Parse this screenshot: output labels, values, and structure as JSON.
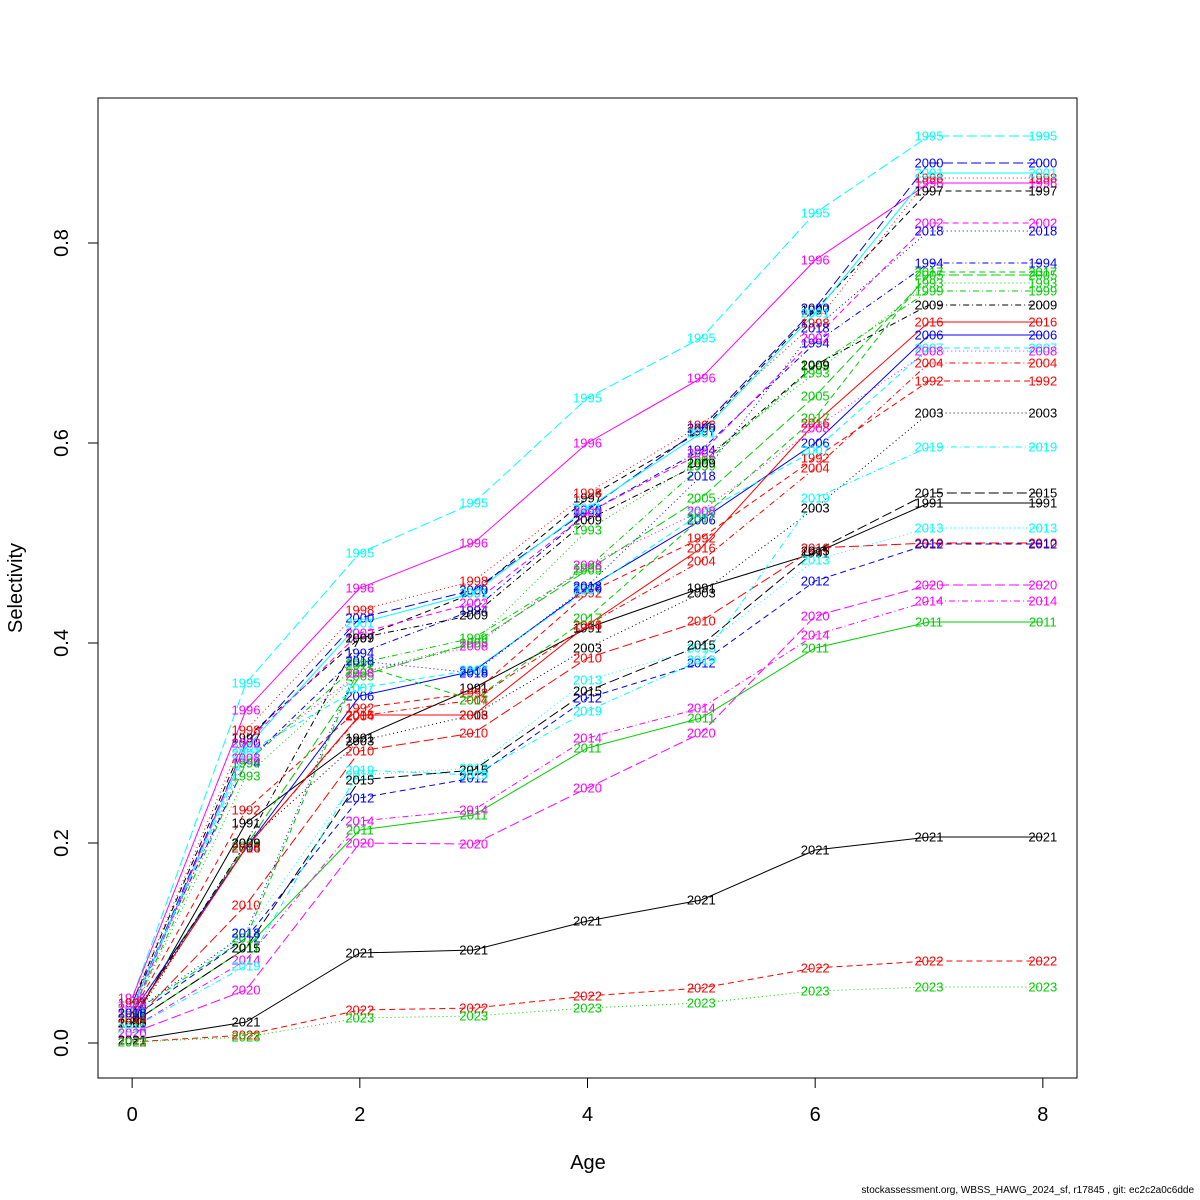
{
  "footer_text": "stockassessment.org, WBSS_HAWG_2024_sf, r17845 , git: ec2c2a0c6dde",
  "chart_data": {
    "type": "line",
    "xlabel": "Age",
    "ylabel": "Selectivity",
    "xlim": [
      -0.3,
      8.3
    ],
    "ylim": [
      -0.035,
      0.945
    ],
    "xticks": [
      "0",
      "2",
      "4",
      "6",
      "8"
    ],
    "yticks": [
      "0.0",
      "0.2",
      "0.4",
      "0.6",
      "0.8"
    ],
    "grid": false,
    "x": [
      0,
      1,
      2,
      3,
      4,
      5,
      6,
      7,
      8
    ],
    "series": [
      {
        "name": "1991",
        "color": "#000000",
        "dash": "solid",
        "values": [
          0.02,
          0.22,
          0.305,
          0.355,
          0.415,
          0.455,
          0.49,
          0.54,
          0.54
        ]
      },
      {
        "name": "1992",
        "color": "#FF0000",
        "dash": "6,4",
        "values": [
          0.03,
          0.233,
          0.335,
          0.35,
          0.45,
          0.505,
          0.585,
          0.662,
          0.662
        ]
      },
      {
        "name": "1993",
        "color": "#00CD00",
        "dash": "1,3",
        "values": [
          0.03,
          0.267,
          0.37,
          0.4,
          0.513,
          0.583,
          0.67,
          0.76,
          0.76
        ]
      },
      {
        "name": "1994",
        "color": "#0000FF",
        "dash": "1,3,6,3",
        "values": [
          0.04,
          0.28,
          0.39,
          0.433,
          0.53,
          0.593,
          0.7,
          0.78,
          0.78
        ]
      },
      {
        "name": "1995",
        "color": "#00FFFF",
        "dash": "10,4",
        "values": [
          0.045,
          0.36,
          0.49,
          0.54,
          0.645,
          0.705,
          0.83,
          0.907,
          0.907
        ]
      },
      {
        "name": "1996",
        "color": "#FF00FF",
        "dash": "solid",
        "values": [
          0.045,
          0.333,
          0.455,
          0.5,
          0.6,
          0.665,
          0.783,
          0.86,
          0.86
        ]
      },
      {
        "name": "1997",
        "color": "#000000",
        "dash": "6,4",
        "values": [
          0.04,
          0.305,
          0.405,
          0.45,
          0.545,
          0.612,
          0.733,
          0.852,
          0.852
        ]
      },
      {
        "name": "1998",
        "color": "#FF0000",
        "dash": "1,3",
        "values": [
          0.04,
          0.313,
          0.433,
          0.462,
          0.55,
          0.618,
          0.72,
          0.865,
          0.865
        ]
      },
      {
        "name": "1999",
        "color": "#00CD00",
        "dash": "1,3,6,3",
        "values": [
          0.03,
          0.28,
          0.38,
          0.405,
          0.475,
          0.577,
          0.677,
          0.752,
          0.752
        ]
      },
      {
        "name": "2000",
        "color": "#0000FF",
        "dash": "10,4",
        "values": [
          0.035,
          0.3,
          0.425,
          0.453,
          0.533,
          0.615,
          0.735,
          0.88,
          0.88
        ]
      },
      {
        "name": "2001",
        "color": "#00FFFF",
        "dash": "solid",
        "values": [
          0.035,
          0.295,
          0.42,
          0.45,
          0.535,
          0.61,
          0.73,
          0.87,
          0.87
        ]
      },
      {
        "name": "2002",
        "color": "#FF00FF",
        "dash": "6,4",
        "values": [
          0.03,
          0.3,
          0.41,
          0.44,
          0.53,
          0.59,
          0.705,
          0.82,
          0.82
        ]
      },
      {
        "name": "2003",
        "color": "#000000",
        "dash": "1,3",
        "values": [
          0.02,
          0.2,
          0.302,
          0.328,
          0.395,
          0.45,
          0.535,
          0.63,
          0.63
        ]
      },
      {
        "name": "2004",
        "color": "#FF0000",
        "dash": "1,3,6,3",
        "values": [
          0.025,
          0.195,
          0.327,
          0.343,
          0.418,
          0.482,
          0.575,
          0.68,
          0.68
        ]
      },
      {
        "name": "2005",
        "color": "#00CD00",
        "dash": "10,4",
        "values": [
          0.03,
          0.197,
          0.367,
          0.4,
          0.473,
          0.545,
          0.647,
          0.768,
          0.768
        ]
      },
      {
        "name": "2006",
        "color": "#0000FF",
        "dash": "solid",
        "values": [
          0.03,
          0.195,
          0.347,
          0.372,
          0.455,
          0.523,
          0.6,
          0.708,
          0.708
        ]
      },
      {
        "name": "2007",
        "color": "#00FFFF",
        "dash": "6,4",
        "values": [
          0.035,
          0.29,
          0.355,
          0.373,
          0.453,
          0.53,
          0.593,
          0.695,
          0.695
        ]
      },
      {
        "name": "2008",
        "color": "#FF00FF",
        "dash": "1,3",
        "values": [
          0.035,
          0.285,
          0.37,
          0.397,
          0.478,
          0.532,
          0.615,
          0.692,
          0.692
        ]
      },
      {
        "name": "2009",
        "color": "#000000",
        "dash": "1,3,6,3",
        "values": [
          0.025,
          0.2,
          0.405,
          0.428,
          0.523,
          0.58,
          0.678,
          0.738,
          0.738
        ]
      },
      {
        "name": "2010",
        "color": "#FF0000",
        "dash": "10,4",
        "values": [
          0.02,
          0.138,
          0.292,
          0.31,
          0.385,
          0.422,
          0.495,
          0.5,
          0.5
        ]
      },
      {
        "name": "2011",
        "color": "#00CD00",
        "dash": "solid",
        "values": [
          0.02,
          0.095,
          0.213,
          0.228,
          0.295,
          0.325,
          0.395,
          0.421,
          0.421
        ]
      },
      {
        "name": "2012",
        "color": "#0000FF",
        "dash": "6,4",
        "values": [
          0.025,
          0.105,
          0.245,
          0.265,
          0.345,
          0.38,
          0.462,
          0.499,
          0.499
        ]
      },
      {
        "name": "2013",
        "color": "#00FFFF",
        "dash": "1,3",
        "values": [
          0.025,
          0.11,
          0.268,
          0.275,
          0.363,
          0.395,
          0.483,
          0.515,
          0.515
        ]
      },
      {
        "name": "2014",
        "color": "#FF00FF",
        "dash": "1,3,6,3",
        "values": [
          0.015,
          0.083,
          0.222,
          0.233,
          0.305,
          0.335,
          0.408,
          0.442,
          0.442
        ]
      },
      {
        "name": "2015",
        "color": "#000000",
        "dash": "10,4",
        "values": [
          0.02,
          0.095,
          0.263,
          0.273,
          0.352,
          0.398,
          0.492,
          0.55,
          0.55
        ]
      },
      {
        "name": "2016",
        "color": "#FF0000",
        "dash": "solid",
        "values": [
          0.025,
          0.195,
          0.328,
          0.328,
          0.418,
          0.495,
          0.62,
          0.721,
          0.721
        ]
      },
      {
        "name": "2017",
        "color": "#00CD00",
        "dash": "6,4",
        "values": [
          0.03,
          0.105,
          0.378,
          0.343,
          0.425,
          0.525,
          0.625,
          0.771,
          0.771
        ]
      },
      {
        "name": "2018",
        "color": "#0000FF",
        "dash": "1,3",
        "values": [
          0.03,
          0.11,
          0.382,
          0.37,
          0.457,
          0.567,
          0.715,
          0.812,
          0.812
        ]
      },
      {
        "name": "2019",
        "color": "#00FFFF",
        "dash": "1,3,6,3",
        "values": [
          0.015,
          0.077,
          0.273,
          0.268,
          0.332,
          0.383,
          0.545,
          0.596,
          0.596
        ]
      },
      {
        "name": "2020",
        "color": "#FF00FF",
        "dash": "10,4",
        "values": [
          0.01,
          0.053,
          0.2,
          0.199,
          0.255,
          0.31,
          0.427,
          0.458,
          0.458
        ]
      },
      {
        "name": "2021",
        "color": "#000000",
        "dash": "solid",
        "values": [
          0.003,
          0.021,
          0.09,
          0.093,
          0.122,
          0.143,
          0.193,
          0.206,
          0.206
        ]
      },
      {
        "name": "2022",
        "color": "#FF0000",
        "dash": "6,4",
        "values": [
          0.001,
          0.008,
          0.033,
          0.035,
          0.047,
          0.055,
          0.075,
          0.082,
          0.082
        ]
      },
      {
        "name": "2023",
        "color": "#00CD00",
        "dash": "1,3",
        "values": [
          0.001,
          0.006,
          0.025,
          0.027,
          0.035,
          0.04,
          0.052,
          0.056,
          0.056
        ]
      }
    ]
  }
}
